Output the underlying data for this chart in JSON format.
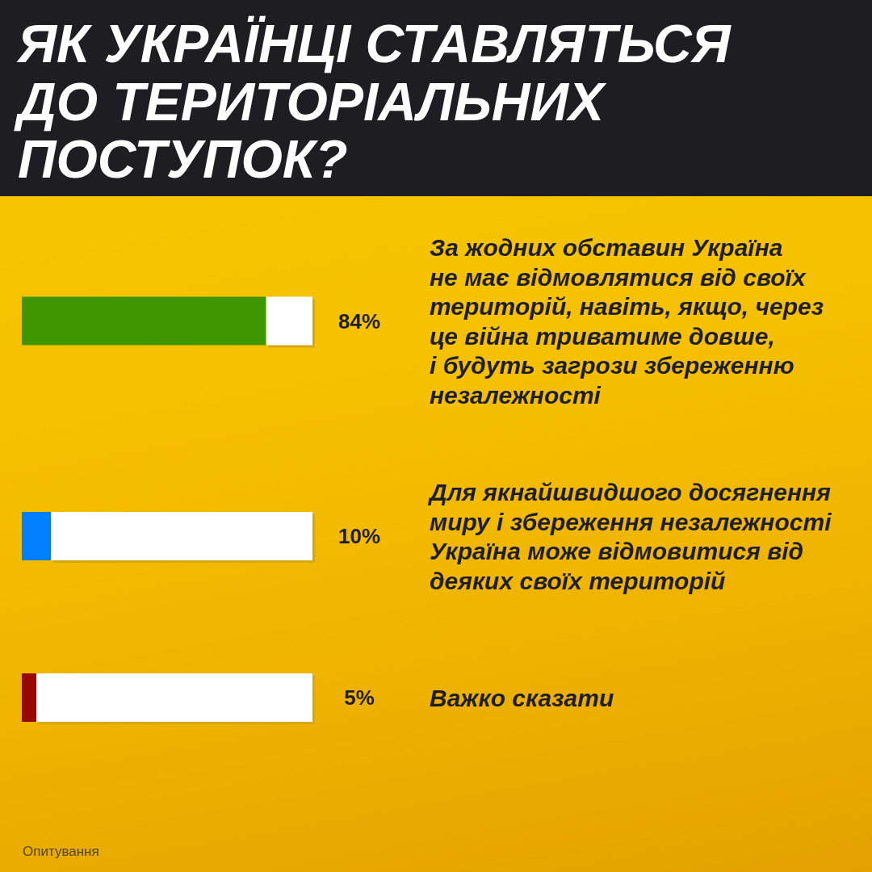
{
  "chart_data": {
    "type": "bar",
    "orientation": "horizontal",
    "title": "ЯК УКРАЇНЦІ СТАВЛЯТЬСЯ\nДО ТЕРИТОРІАЛЬНИХ\nПОСТУПОК?",
    "categories": [
      "За жодних обставин Україна\nне має відмовлятися від своїх\nтериторій, навіть, якщо, через\nце війна триватиме довше,\nі будуть загрози збереженню\nнезалежності",
      "Для якнайшвидшого досягнення\nмиру і збереження незалежності\nУкраїна може відмовитися від\nдеяких своїх територій",
      "Важко сказати"
    ],
    "values": [
      84,
      10,
      5
    ],
    "colors": [
      "#3f9800",
      "#0080ff",
      "#990800"
    ],
    "xlim": [
      0,
      100
    ],
    "value_labels": [
      "84%",
      "10%",
      "5%"
    ],
    "tick_labels": false,
    "annotations": [
      "Опитування"
    ]
  }
}
